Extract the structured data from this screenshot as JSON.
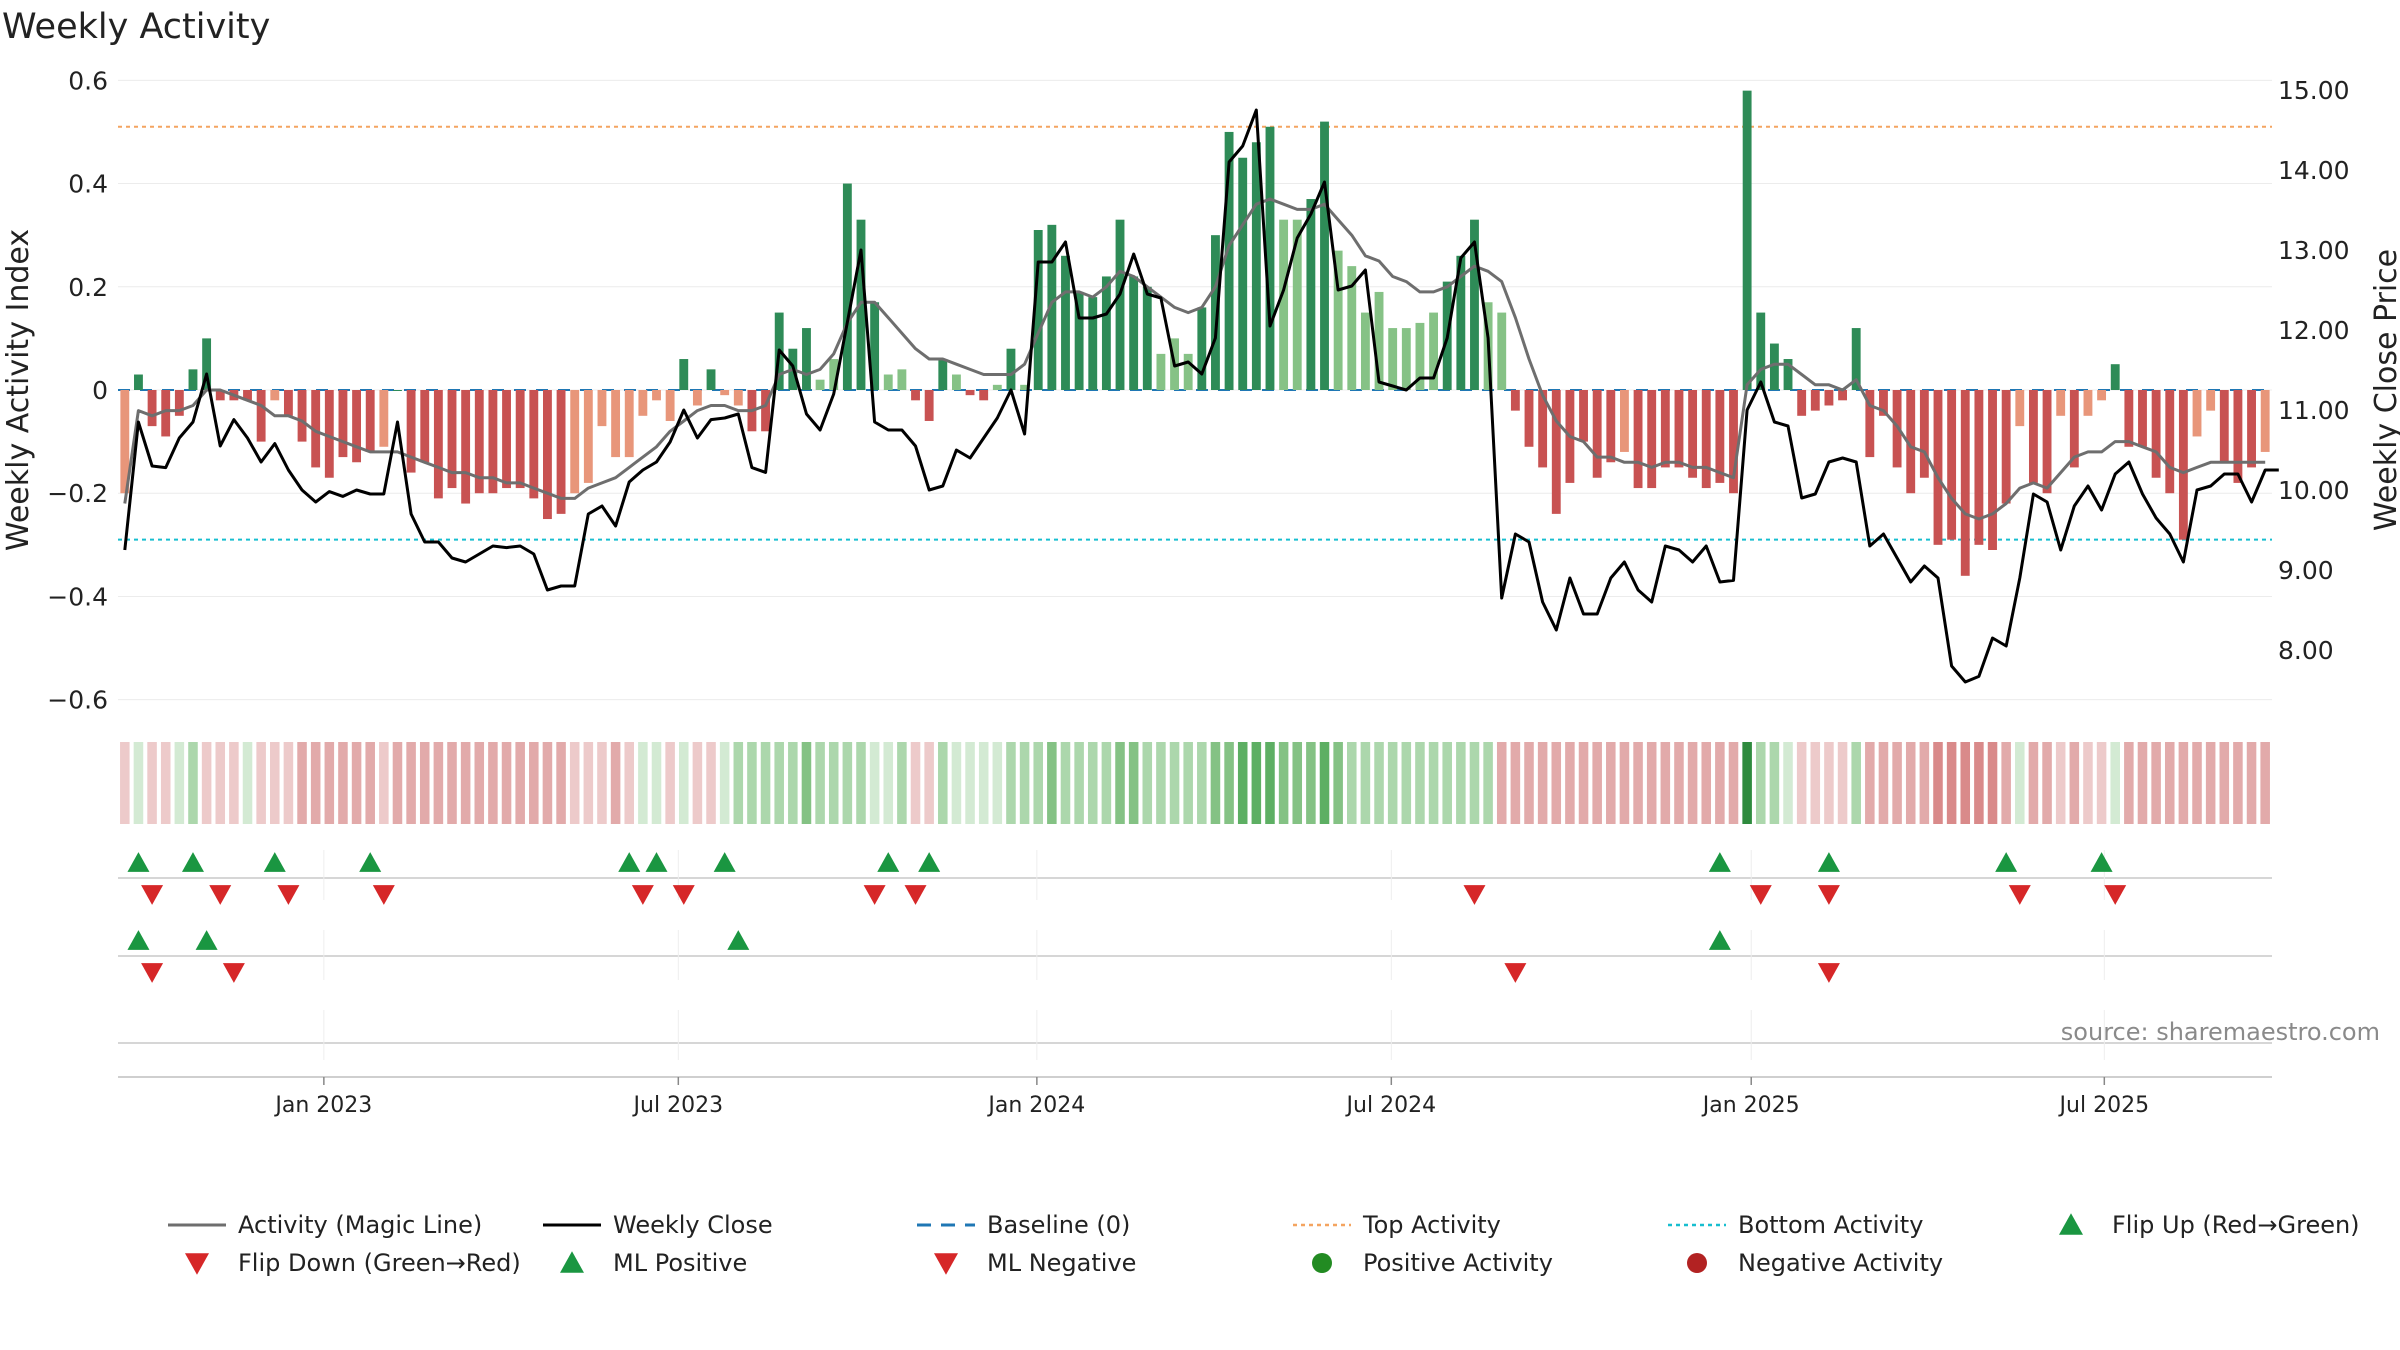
{
  "chart_data": {
    "type": "bar",
    "title": "Weekly Activity",
    "ylabel": "Weekly Activity Index",
    "y2label": "Weekly Close Price",
    "ylim": [
      -0.62,
      0.62
    ],
    "y2lim": [
      7.25,
      15.25
    ],
    "yticks": [
      {
        "v": 0.6,
        "label": "0.6"
      },
      {
        "v": 0.4,
        "label": "0.4"
      },
      {
        "v": 0.2,
        "label": "0.2"
      },
      {
        "v": 0,
        "label": "0"
      },
      {
        "v": -0.2,
        "label": "−0.2"
      },
      {
        "v": -0.4,
        "label": "−0.4"
      },
      {
        "v": -0.6,
        "label": "−0.6"
      }
    ],
    "y2ticks": [
      {
        "v": 15,
        "label": "15.00"
      },
      {
        "v": 14,
        "label": "14.00"
      },
      {
        "v": 13,
        "label": "13.00"
      },
      {
        "v": 12,
        "label": "12.00"
      },
      {
        "v": 11,
        "label": "11.00"
      },
      {
        "v": 10,
        "label": "10.00"
      },
      {
        "v": 9,
        "label": "9.00"
      },
      {
        "v": 8,
        "label": "8.00"
      }
    ],
    "xticks": [
      {
        "week": 14.6,
        "label": "Jan 2023"
      },
      {
        "week": 40.6,
        "label": "Jul 2023"
      },
      {
        "week": 66.9,
        "label": "Jan 2024"
      },
      {
        "week": 92.9,
        "label": "Jul 2024"
      },
      {
        "week": 119.3,
        "label": "Jan 2025"
      },
      {
        "week": 145.2,
        "label": "Jul 2025"
      }
    ],
    "top_activity": 0.51,
    "bottom_activity": -0.29,
    "activity": [
      -0.2,
      0.03,
      -0.07,
      -0.09,
      -0.05,
      0.04,
      0.1,
      -0.02,
      -0.02,
      -0.02,
      -0.1,
      -0.02,
      -0.05,
      -0.1,
      -0.15,
      -0.17,
      -0.13,
      -0.14,
      -0.12,
      -0.11,
      0,
      -0.16,
      -0.14,
      -0.21,
      -0.19,
      -0.22,
      -0.2,
      -0.2,
      -0.19,
      -0.19,
      -0.21,
      -0.25,
      -0.24,
      -0.2,
      -0.18,
      -0.07,
      -0.13,
      -0.13,
      -0.05,
      -0.02,
      -0.06,
      0.06,
      -0.03,
      0.04,
      -0.01,
      -0.03,
      -0.08,
      -0.08,
      0.15,
      0.08,
      0.12,
      0.02,
      0.06,
      0.4,
      0.33,
      0.17,
      0.03,
      0.04,
      -0.02,
      -0.06,
      0.06,
      0.03,
      -0.01,
      -0.02,
      0.01,
      0.08,
      0.01,
      0.31,
      0.32,
      0.26,
      0.19,
      0.18,
      0.22,
      0.33,
      0.22,
      0.2,
      0.07,
      0.1,
      0.07,
      0.16,
      0.3,
      0.5,
      0.45,
      0.48,
      0.51,
      0.33,
      0.33,
      0.37,
      0.52,
      0.27,
      0.24,
      0.15,
      0.19,
      0.12,
      0.12,
      0.13,
      0.15,
      0.21,
      0.26,
      0.33,
      0.17,
      0.15,
      -0.04,
      -0.11,
      -0.15,
      -0.24,
      -0.18,
      -0.1,
      -0.17,
      -0.14,
      -0.12,
      -0.19,
      -0.19,
      -0.15,
      -0.15,
      -0.17,
      -0.19,
      -0.18,
      -0.2,
      0.58,
      0.15,
      0.09,
      0.06,
      -0.05,
      -0.04,
      -0.03,
      -0.02,
      0.12,
      -0.13,
      -0.05,
      -0.15,
      -0.2,
      -0.17,
      -0.3,
      -0.29,
      -0.36,
      -0.3,
      -0.31,
      -0.22,
      -0.07,
      -0.18,
      -0.2,
      -0.05,
      -0.15,
      -0.05,
      -0.02,
      0.05,
      -0.11,
      -0.11,
      -0.17,
      -0.2,
      -0.29,
      -0.09,
      -0.04,
      -0.14,
      -0.18,
      -0.15,
      -0.12
    ],
    "magic_line": [
      -0.22,
      -0.04,
      -0.05,
      -0.04,
      -0.04,
      -0.03,
      0,
      0,
      -0.01,
      -0.02,
      -0.03,
      -0.05,
      -0.05,
      -0.06,
      -0.08,
      -0.09,
      -0.1,
      -0.11,
      -0.12,
      -0.12,
      -0.12,
      -0.13,
      -0.14,
      -0.15,
      -0.16,
      -0.16,
      -0.17,
      -0.17,
      -0.18,
      -0.18,
      -0.19,
      -0.2,
      -0.21,
      -0.21,
      -0.19,
      -0.18,
      -0.17,
      -0.15,
      -0.13,
      -0.11,
      -0.08,
      -0.06,
      -0.04,
      -0.03,
      -0.03,
      -0.04,
      -0.04,
      -0.03,
      0.03,
      0.04,
      0.03,
      0.04,
      0.07,
      0.13,
      0.17,
      0.17,
      0.14,
      0.11,
      0.08,
      0.06,
      0.06,
      0.05,
      0.04,
      0.03,
      0.03,
      0.03,
      0.05,
      0.11,
      0.17,
      0.19,
      0.19,
      0.18,
      0.2,
      0.23,
      0.22,
      0.2,
      0.18,
      0.16,
      0.15,
      0.16,
      0.2,
      0.28,
      0.32,
      0.36,
      0.37,
      0.36,
      0.35,
      0.35,
      0.36,
      0.33,
      0.3,
      0.26,
      0.25,
      0.22,
      0.21,
      0.19,
      0.19,
      0.2,
      0.22,
      0.24,
      0.23,
      0.21,
      0.14,
      0.06,
      -0.01,
      -0.06,
      -0.09,
      -0.1,
      -0.13,
      -0.13,
      -0.14,
      -0.14,
      -0.15,
      -0.14,
      -0.14,
      -0.15,
      -0.15,
      -0.16,
      -0.17,
      0.01,
      0.04,
      0.05,
      0.05,
      0.03,
      0.01,
      0.01,
      0,
      0.02,
      -0.03,
      -0.04,
      -0.07,
      -0.11,
      -0.12,
      -0.17,
      -0.21,
      -0.24,
      -0.25,
      -0.24,
      -0.22,
      -0.19,
      -0.18,
      -0.19,
      -0.16,
      -0.13,
      -0.12,
      -0.12,
      -0.1,
      -0.1,
      -0.11,
      -0.12,
      -0.15,
      -0.16,
      -0.15,
      -0.14,
      -0.14,
      -0.14,
      -0.14,
      -0.14
    ],
    "weekly_close": [
      9.25,
      10.85,
      10.3,
      10.28,
      10.65,
      10.85,
      11.45,
      10.55,
      10.88,
      10.65,
      10.35,
      10.58,
      10.25,
      10.0,
      9.85,
      9.98,
      9.92,
      10.0,
      9.95,
      9.95,
      10.85,
      9.7,
      9.35,
      9.35,
      9.15,
      9.1,
      9.2,
      9.3,
      9.28,
      9.3,
      9.2,
      8.75,
      8.8,
      8.8,
      9.7,
      9.8,
      9.55,
      10.1,
      10.25,
      10.35,
      10.6,
      11.0,
      10.65,
      10.88,
      10.9,
      10.95,
      10.28,
      10.22,
      11.75,
      11.55,
      10.95,
      10.75,
      11.2,
      12.1,
      13.0,
      10.85,
      10.75,
      10.75,
      10.55,
      10.0,
      10.05,
      10.5,
      10.4,
      10.65,
      10.9,
      11.25,
      10.7,
      12.85,
      12.85,
      13.1,
      12.15,
      12.15,
      12.2,
      12.45,
      12.95,
      12.45,
      12.4,
      11.55,
      11.6,
      11.45,
      11.9,
      14.1,
      14.3,
      14.75,
      12.05,
      12.5,
      13.15,
      13.45,
      13.85,
      12.5,
      12.55,
      12.75,
      11.35,
      11.3,
      11.25,
      11.4,
      11.4,
      11.9,
      12.9,
      13.1,
      11.9,
      8.65,
      9.45,
      9.35,
      8.6,
      8.25,
      8.9,
      8.45,
      8.45,
      8.9,
      9.1,
      8.75,
      8.6,
      9.3,
      9.25,
      9.1,
      9.3,
      8.85,
      8.87,
      11.0,
      11.35,
      10.85,
      10.8,
      9.9,
      9.95,
      10.35,
      10.4,
      10.35,
      9.3,
      9.45,
      9.15,
      8.85,
      9.05,
      8.9,
      7.8,
      7.6,
      7.67,
      8.15,
      8.05,
      8.9,
      9.95,
      9.85,
      9.25,
      9.8,
      10.05,
      9.75,
      10.2,
      10.35,
      9.95,
      9.65,
      9.45,
      9.1,
      10.0,
      10.05,
      10.2,
      10.2,
      9.85,
      10.25,
      10.25
    ],
    "heat_strip": [
      -1,
      1,
      -1,
      -1,
      1,
      2,
      -1,
      -1,
      -1,
      1,
      -1,
      -1,
      -1,
      -2,
      -2,
      -2,
      -2,
      -2,
      -2,
      -1,
      -2,
      -2,
      -2,
      -2,
      -2,
      -2,
      -2,
      -2,
      -2,
      -2,
      -2,
      -2,
      -2,
      -1,
      -1,
      -1,
      -2,
      -1,
      1,
      1,
      -1,
      1,
      -1,
      -1,
      1,
      2,
      2,
      2,
      2,
      2,
      3,
      2,
      2,
      2,
      2,
      1,
      1,
      2,
      -1,
      -1,
      2,
      1,
      1,
      1,
      1,
      2,
      2,
      2,
      3,
      2,
      2,
      2,
      2,
      3,
      3,
      2,
      2,
      2,
      2,
      2,
      3,
      3,
      4,
      4,
      4,
      3,
      3,
      3,
      4,
      3,
      2,
      2,
      2,
      2,
      2,
      2,
      2,
      2,
      2,
      2,
      2,
      -2,
      -2,
      -2,
      -2,
      -2,
      -2,
      -2,
      -2,
      -2,
      -2,
      -2,
      -2,
      -2,
      -2,
      -2,
      -2,
      -2,
      -2,
      5,
      2,
      2,
      1,
      -1,
      -1,
      -1,
      -1,
      2,
      -2,
      -2,
      -2,
      -2,
      -2,
      -3,
      -3,
      -3,
      -3,
      -3,
      -2,
      1,
      -2,
      -2,
      -1,
      -2,
      -1,
      -1,
      1,
      -2,
      -2,
      -2,
      -2,
      -2,
      -2,
      -2,
      -2,
      -2,
      -2,
      -2
    ],
    "ml_strip_up_weeks": [
      1,
      5,
      11,
      18,
      37,
      39,
      44,
      56,
      59,
      117,
      125,
      138,
      145
    ],
    "ml_strip_down_weeks": [
      2,
      7,
      12,
      19,
      38,
      41,
      55,
      58,
      99,
      120,
      125,
      139,
      146
    ],
    "flip_up_weeks": [
      1,
      6,
      45,
      117
    ],
    "flip_down_weeks": [
      2,
      8,
      102,
      125
    ],
    "source": "source: sharemaestro.com",
    "legend": [
      {
        "key": "magic",
        "label": "Activity (Magic Line)"
      },
      {
        "key": "close",
        "label": "Weekly Close"
      },
      {
        "key": "baseline",
        "label": "Baseline (0)"
      },
      {
        "key": "top",
        "label": "Top Activity"
      },
      {
        "key": "bottom",
        "label": "Bottom Activity"
      },
      {
        "key": "flipup",
        "label": "Flip Up (Red→Green)"
      },
      {
        "key": "flipdown",
        "label": "Flip Down (Green→Red)"
      },
      {
        "key": "mlpos",
        "label": "ML Positive"
      },
      {
        "key": "mlneg",
        "label": "ML Negative"
      },
      {
        "key": "posact",
        "label": "Positive Activity"
      },
      {
        "key": "negact",
        "label": "Negative Activity"
      }
    ],
    "colors": {
      "green_dark": "#2e8b57",
      "green_light": "#86c286",
      "red_dark": "#c85252",
      "red_light": "#e8967a",
      "magic": "#6e6e6e",
      "close": "#000000",
      "baseline": "#1f77b4",
      "top": "#f4a460",
      "bottom": "#17becf",
      "marker_up": "#1a9641",
      "marker_down": "#d62728",
      "pos_dot": "#228b22",
      "neg_dot": "#b22222"
    }
  }
}
